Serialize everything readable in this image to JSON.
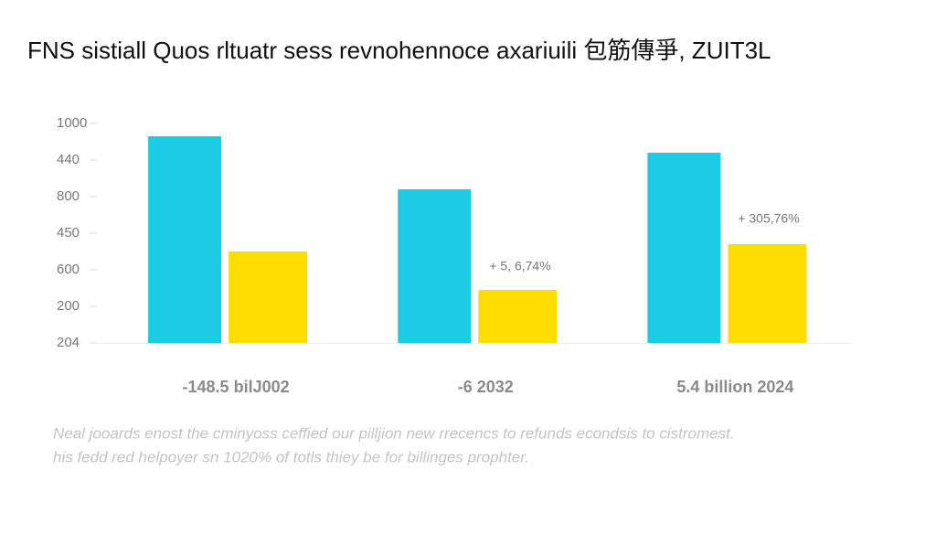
{
  "chart_data": {
    "type": "bar",
    "title": "FNS sistiall Quos rltuatr sess revnohennoce axariuili 包筋傳爭, ZUIT3L",
    "categories": [
      "-148.5 bilJ002",
      "-6 2032",
      "5.4 billion 2024"
    ],
    "series": [
      {
        "color": "#1ccbe6",
        "values": [
          5.65,
          4.2,
          5.2
        ]
      },
      {
        "color": "#ffdd00",
        "values": [
          2.5,
          1.45,
          2.7
        ]
      }
    ],
    "ylim": [
      0,
      6
    ],
    "yticks": [
      {
        "value": 0,
        "label": "204"
      },
      {
        "value": 1,
        "label": "200"
      },
      {
        "value": 2,
        "label": "600"
      },
      {
        "value": 3,
        "label": "450"
      },
      {
        "value": 4,
        "label": "800"
      },
      {
        "value": 5,
        "label": "440"
      },
      {
        "value": 6,
        "label": "1000"
      }
    ],
    "annotations": [
      "+ 5, 6,74%",
      "+ 305,76%"
    ],
    "footnote": [
      "Neal jooards enost the cminyoss ceffied our pilljion new rrecencs to refunds econdsis to cistromest.",
      "his fedd red helpoyer sn 1020% of totls thiey be for billinges prophter."
    ]
  }
}
